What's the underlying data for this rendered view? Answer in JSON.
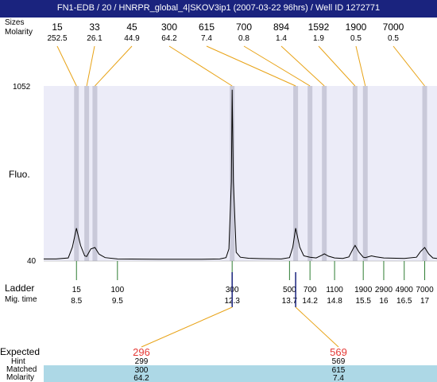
{
  "title": "FN1-EDB / 20 / HNRPR_global_4|SKOV3ip1 (2007-03-22 96hrs) / Well ID 1272771",
  "row_labels": {
    "sizes": "Sizes",
    "molarity": "Molarity",
    "fluo": "Fluo.",
    "ladder": "Ladder",
    "mig_time": "Mig. time",
    "expected": "Expected",
    "hint": "Hint",
    "matched": "Matched",
    "molarity_bottom": "Molarity"
  },
  "colors": {
    "title_bg": "#1a237e",
    "plot_bg": "#ececf8",
    "band": "#c9c9d9",
    "connector": "#e8a317",
    "ladder_tick": "#2e7d32",
    "expected_red": "#e53935",
    "table_band": "#add8e6",
    "marker_blue": "#1a237e"
  },
  "chart_data": {
    "type": "line",
    "title": "",
    "ylabel": "Fluo.",
    "ylim": [
      40,
      1052
    ],
    "y_ticks": [
      "1052",
      "40"
    ],
    "x_axis": "migration time (s)",
    "xlim": [
      7.7,
      17.3
    ],
    "peaks": [
      {
        "size": "15",
        "molarity": "252.5",
        "time": 8.5
      },
      {
        "size": "33",
        "molarity": "26.1",
        "time": 8.75
      },
      {
        "size": "45",
        "molarity": "44.9",
        "time": 8.95
      },
      {
        "size": "300",
        "molarity": "64.2",
        "time": 12.3
      },
      {
        "size": "615",
        "molarity": "7.4",
        "time": 13.85
      },
      {
        "size": "700",
        "molarity": "0.8",
        "time": 14.2
      },
      {
        "size": "894",
        "molarity": "1.4",
        "time": 14.55
      },
      {
        "size": "1592",
        "molarity": "1.9",
        "time": 15.3
      },
      {
        "size": "1900",
        "molarity": "0.5",
        "time": 15.55
      },
      {
        "size": "7000",
        "molarity": "0.5",
        "time": 17.0
      }
    ],
    "trace": [
      [
        7.7,
        52
      ],
      [
        8.0,
        52
      ],
      [
        8.3,
        58
      ],
      [
        8.4,
        120
      ],
      [
        8.5,
        230
      ],
      [
        8.6,
        130
      ],
      [
        8.7,
        70
      ],
      [
        8.75,
        66
      ],
      [
        8.85,
        110
      ],
      [
        8.95,
        118
      ],
      [
        9.05,
        80
      ],
      [
        9.2,
        60
      ],
      [
        9.5,
        52
      ],
      [
        10.5,
        50
      ],
      [
        11.5,
        50
      ],
      [
        12.0,
        52
      ],
      [
        12.15,
        60
      ],
      [
        12.22,
        110
      ],
      [
        12.28,
        500
      ],
      [
        12.3,
        1030
      ],
      [
        12.33,
        500
      ],
      [
        12.4,
        90
      ],
      [
        12.5,
        62
      ],
      [
        12.7,
        56
      ],
      [
        13.0,
        54
      ],
      [
        13.5,
        52
      ],
      [
        13.7,
        60
      ],
      [
        13.78,
        120
      ],
      [
        13.85,
        230
      ],
      [
        13.95,
        120
      ],
      [
        14.05,
        70
      ],
      [
        14.2,
        62
      ],
      [
        14.35,
        58
      ],
      [
        14.5,
        75
      ],
      [
        14.55,
        82
      ],
      [
        14.65,
        68
      ],
      [
        14.8,
        58
      ],
      [
        15.0,
        55
      ],
      [
        15.15,
        64
      ],
      [
        15.25,
        110
      ],
      [
        15.3,
        130
      ],
      [
        15.4,
        90
      ],
      [
        15.5,
        62
      ],
      [
        15.55,
        60
      ],
      [
        15.7,
        70
      ],
      [
        15.8,
        65
      ],
      [
        16.0,
        58
      ],
      [
        16.5,
        55
      ],
      [
        16.8,
        62
      ],
      [
        16.9,
        95
      ],
      [
        17.0,
        118
      ],
      [
        17.1,
        80
      ],
      [
        17.2,
        58
      ],
      [
        17.3,
        55
      ]
    ],
    "ladder": [
      {
        "size": "15",
        "time": 8.5
      },
      {
        "size": "100",
        "time": 9.5
      },
      {
        "size": "300",
        "time": 12.3
      },
      {
        "size": "500",
        "time": 13.7
      },
      {
        "size": "700",
        "time": 14.2
      },
      {
        "size": "1100",
        "time": 14.8
      },
      {
        "size": "1900",
        "time": 15.5
      },
      {
        "size": "2900",
        "time": 16.0
      },
      {
        "size": "4900",
        "time": 16.5
      },
      {
        "size": "7000",
        "time": 17.0
      }
    ],
    "expected": [
      {
        "expected": "296",
        "hint": "299",
        "matched": "300",
        "molarity": "64.2",
        "time": 12.3
      },
      {
        "expected": "569",
        "hint": "569",
        "matched": "615",
        "molarity": "7.4",
        "time": 13.85
      }
    ]
  }
}
